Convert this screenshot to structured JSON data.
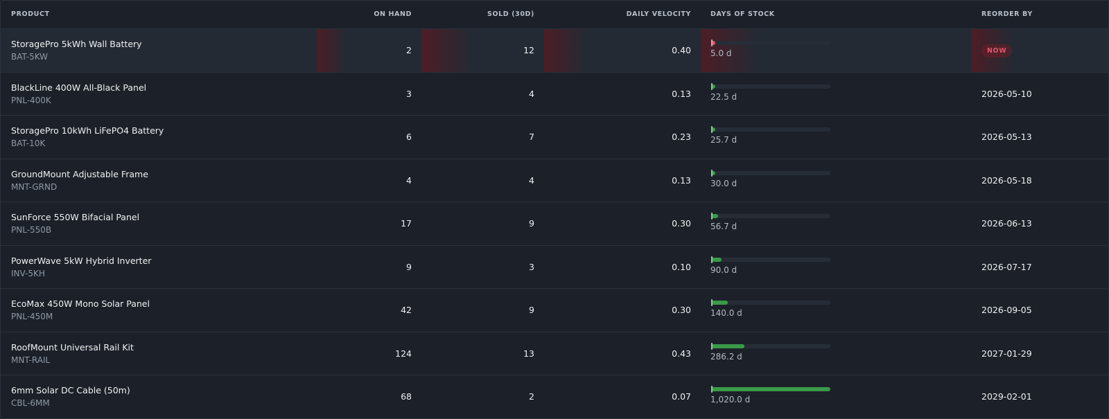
{
  "table": {
    "columns": [
      "PRODUCT",
      "ON HAND",
      "SOLD (30D)",
      "DAILY VELOCITY",
      "DAYS OF STOCK",
      "REORDER BY"
    ],
    "rows": [
      {
        "name": "StoragePro 5kWh Wall Battery",
        "sku": "BAT-5KW",
        "on_hand": 2,
        "sold_30d": 12,
        "velocity": "0.40",
        "days": 5,
        "days_label": "5.0 d",
        "bar_color": "#e0566a",
        "alert": true,
        "reorder": "NOW"
      },
      {
        "name": "BlackLine 400W All-Black Panel",
        "sku": "PNL-400K",
        "on_hand": 3,
        "sold_30d": 4,
        "velocity": "0.13",
        "days": 22.5,
        "days_label": "22.5 d",
        "bar_color": "#3a9a48",
        "alert": false,
        "reorder": "2026-05-10"
      },
      {
        "name": "StoragePro 10kWh LiFePO4 Battery",
        "sku": "BAT-10K",
        "on_hand": 6,
        "sold_30d": 7,
        "velocity": "0.23",
        "days": 25.7,
        "days_label": "25.7 d",
        "bar_color": "#3a9a48",
        "alert": false,
        "reorder": "2026-05-13"
      },
      {
        "name": "GroundMount Adjustable Frame",
        "sku": "MNT-GRND",
        "on_hand": 4,
        "sold_30d": 4,
        "velocity": "0.13",
        "days": 30,
        "days_label": "30.0 d",
        "bar_color": "#3a9a48",
        "alert": false,
        "reorder": "2026-05-18"
      },
      {
        "name": "SunForce 550W Bifacial Panel",
        "sku": "PNL-550B",
        "on_hand": 17,
        "sold_30d": 9,
        "velocity": "0.30",
        "days": 56.7,
        "days_label": "56.7 d",
        "bar_color": "#3a9a48",
        "alert": false,
        "reorder": "2026-06-13"
      },
      {
        "name": "PowerWave 5kW Hybrid Inverter",
        "sku": "INV-5KH",
        "on_hand": 9,
        "sold_30d": 3,
        "velocity": "0.10",
        "days": 90,
        "days_label": "90.0 d",
        "bar_color": "#3a9a48",
        "alert": false,
        "reorder": "2026-07-17"
      },
      {
        "name": "EcoMax 450W Mono Solar Panel",
        "sku": "PNL-450M",
        "on_hand": 42,
        "sold_30d": 9,
        "velocity": "0.30",
        "days": 140,
        "days_label": "140.0 d",
        "bar_color": "#3a9a48",
        "alert": false,
        "reorder": "2026-09-05"
      },
      {
        "name": "RoofMount Universal Rail Kit",
        "sku": "MNT-RAIL",
        "on_hand": 124,
        "sold_30d": 13,
        "velocity": "0.43",
        "days": 286.2,
        "days_label": "286.2 d",
        "bar_color": "#3a9a48",
        "alert": false,
        "reorder": "2027-01-29"
      },
      {
        "name": "6mm Solar DC Cable (50m)",
        "sku": "CBL-6MM",
        "on_hand": 68,
        "sold_30d": 2,
        "velocity": "0.07",
        "days": 1020,
        "days_label": "1,020.0 d",
        "bar_color": "#3a9a48",
        "alert": false,
        "reorder": "2029-02-01"
      }
    ]
  }
}
